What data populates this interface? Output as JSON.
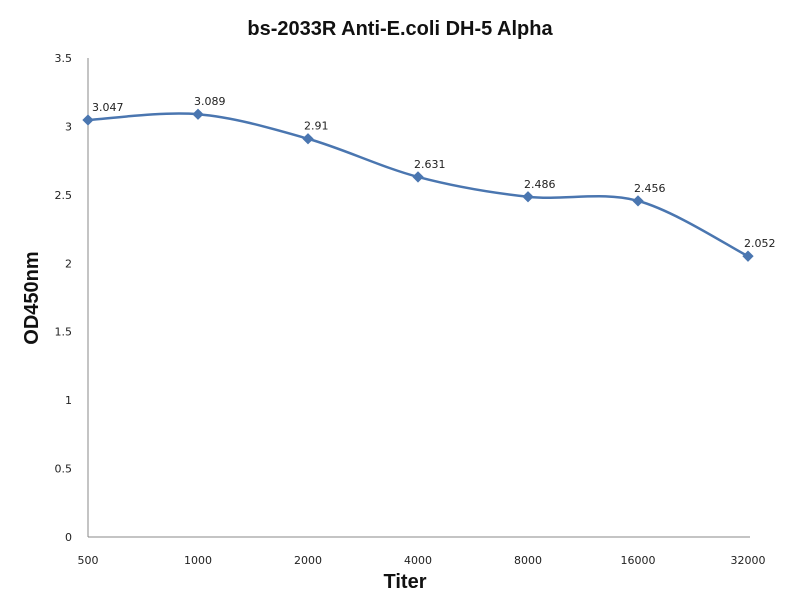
{
  "chart_data": {
    "type": "line",
    "title": "bs-2033R Anti-E.coli DH-5 Alpha",
    "xlabel": "Titer",
    "ylabel": "OD450nm",
    "categories": [
      "500",
      "1000",
      "2000",
      "4000",
      "8000",
      "16000",
      "32000"
    ],
    "series": [
      {
        "name": "OD450nm",
        "values": [
          3.047,
          3.089,
          2.91,
          2.631,
          2.486,
          2.456,
          2.052
        ],
        "labels": [
          "3.047",
          "3.089",
          "2.91",
          "2.631",
          "2.486",
          "2.456",
          "2.052"
        ]
      }
    ],
    "ylim": [
      0,
      3.5
    ],
    "yticks": [
      "0",
      "0.5",
      "1",
      "1.5",
      "2",
      "2.5",
      "3",
      "3.5"
    ],
    "grid": false,
    "line_color": "#4a76b0",
    "marker_color": "#4a76b0"
  }
}
